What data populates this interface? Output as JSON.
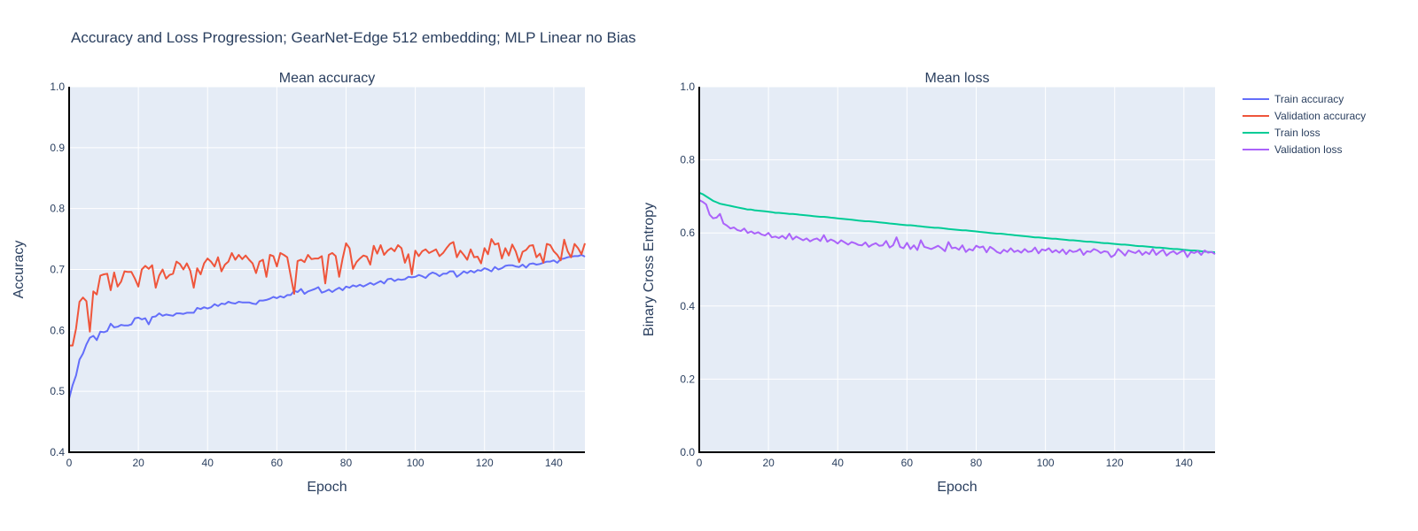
{
  "title": "Accuracy and Loss Progression; GearNet-Edge 512 embedding; MLP Linear no Bias",
  "legend": {
    "placement": "right",
    "entries": [
      {
        "name": "Train accuracy",
        "color": "#636efa"
      },
      {
        "name": "Validation accuracy",
        "color": "#ef553b"
      },
      {
        "name": "Train loss",
        "color": "#00cc96"
      },
      {
        "name": "Validation loss",
        "color": "#ab63fa"
      }
    ]
  },
  "colors": {
    "plot_bg": "#e5ecf6",
    "grid": "#ffffff",
    "axis_line": "#000000",
    "text": "#2a3f5f"
  },
  "chart_data": [
    {
      "type": "line",
      "subplot_title": "Mean accuracy",
      "xlabel": "Epoch",
      "ylabel": "Accuracy",
      "xlim": [
        0,
        149
      ],
      "ylim": [
        0.4,
        1.0
      ],
      "xticks": [
        0,
        20,
        40,
        60,
        80,
        100,
        120,
        140
      ],
      "yticks": [
        0.4,
        0.5,
        0.6,
        0.7,
        0.8,
        0.9,
        1.0
      ],
      "tick_format": "1",
      "grid": true,
      "series": [
        {
          "name": "Train accuracy",
          "color": "#636efa",
          "values": [
            0.488,
            0.51,
            0.526,
            0.552,
            0.562,
            0.577,
            0.588,
            0.591,
            0.584,
            0.598,
            0.597,
            0.599,
            0.611,
            0.605,
            0.606,
            0.609,
            0.608,
            0.608,
            0.61,
            0.62,
            0.621,
            0.618,
            0.62,
            0.61,
            0.622,
            0.623,
            0.628,
            0.624,
            0.626,
            0.625,
            0.624,
            0.628,
            0.628,
            0.627,
            0.629,
            0.629,
            0.629,
            0.637,
            0.635,
            0.638,
            0.636,
            0.638,
            0.643,
            0.64,
            0.644,
            0.643,
            0.647,
            0.645,
            0.644,
            0.647,
            0.646,
            0.646,
            0.646,
            0.644,
            0.643,
            0.649,
            0.649,
            0.65,
            0.652,
            0.655,
            0.653,
            0.656,
            0.654,
            0.658,
            0.658,
            0.665,
            0.663,
            0.668,
            0.66,
            0.664,
            0.666,
            0.668,
            0.671,
            0.662,
            0.664,
            0.667,
            0.663,
            0.667,
            0.67,
            0.666,
            0.672,
            0.67,
            0.674,
            0.672,
            0.675,
            0.672,
            0.675,
            0.678,
            0.675,
            0.678,
            0.681,
            0.677,
            0.684,
            0.685,
            0.681,
            0.684,
            0.683,
            0.684,
            0.688,
            0.687,
            0.688,
            0.691,
            0.689,
            0.686,
            0.692,
            0.695,
            0.693,
            0.689,
            0.693,
            0.693,
            0.697,
            0.697,
            0.688,
            0.692,
            0.697,
            0.694,
            0.698,
            0.695,
            0.699,
            0.698,
            0.702,
            0.7,
            0.697,
            0.704,
            0.7,
            0.702,
            0.706,
            0.707,
            0.707,
            0.705,
            0.704,
            0.708,
            0.703,
            0.709,
            0.71,
            0.708,
            0.709,
            0.711,
            0.713,
            0.713,
            0.715,
            0.711,
            0.717,
            0.718,
            0.72,
            0.721,
            0.722,
            0.722,
            0.724,
            0.721
          ]
        },
        {
          "name": "Validation accuracy",
          "color": "#ef553b",
          "values": [
            0.575,
            0.575,
            0.603,
            0.647,
            0.654,
            0.648,
            0.598,
            0.664,
            0.659,
            0.69,
            0.692,
            0.693,
            0.666,
            0.695,
            0.672,
            0.68,
            0.697,
            0.696,
            0.696,
            0.685,
            0.672,
            0.7,
            0.706,
            0.701,
            0.707,
            0.67,
            0.69,
            0.7,
            0.685,
            0.691,
            0.693,
            0.713,
            0.709,
            0.7,
            0.71,
            0.698,
            0.67,
            0.702,
            0.692,
            0.71,
            0.718,
            0.713,
            0.705,
            0.72,
            0.697,
            0.708,
            0.713,
            0.727,
            0.716,
            0.724,
            0.717,
            0.723,
            0.716,
            0.71,
            0.694,
            0.713,
            0.716,
            0.688,
            0.724,
            0.722,
            0.705,
            0.727,
            0.724,
            0.72,
            0.69,
            0.66,
            0.714,
            0.716,
            0.712,
            0.724,
            0.717,
            0.718,
            0.718,
            0.722,
            0.677,
            0.724,
            0.727,
            0.722,
            0.688,
            0.718,
            0.743,
            0.735,
            0.701,
            0.712,
            0.718,
            0.723,
            0.721,
            0.708,
            0.739,
            0.726,
            0.74,
            0.724,
            0.731,
            0.735,
            0.73,
            0.74,
            0.735,
            0.711,
            0.725,
            0.692,
            0.731,
            0.722,
            0.73,
            0.733,
            0.727,
            0.73,
            0.733,
            0.722,
            0.727,
            0.735,
            0.742,
            0.745,
            0.72,
            0.731,
            0.724,
            0.716,
            0.733,
            0.72,
            0.721,
            0.71,
            0.735,
            0.725,
            0.75,
            0.741,
            0.743,
            0.718,
            0.735,
            0.723,
            0.741,
            0.73,
            0.712,
            0.729,
            0.732,
            0.739,
            0.74,
            0.72,
            0.726,
            0.711,
            0.742,
            0.74,
            0.73,
            0.724,
            0.715,
            0.749,
            0.73,
            0.72,
            0.742,
            0.735,
            0.725,
            0.743
          ]
        }
      ]
    },
    {
      "type": "line",
      "subplot_title": "Mean loss",
      "xlabel": "Epoch",
      "ylabel": "Binary Cross Entropy",
      "xlim": [
        0,
        149
      ],
      "ylim": [
        0,
        1.0
      ],
      "xticks": [
        0,
        20,
        40,
        60,
        80,
        100,
        120,
        140
      ],
      "yticks": [
        0,
        0.2,
        0.4,
        0.6,
        0.8,
        1.0
      ],
      "tick_format": "1",
      "grid": true,
      "series": [
        {
          "name": "Train loss",
          "color": "#00cc96",
          "values": [
            0.71,
            0.706,
            0.7,
            0.694,
            0.688,
            0.684,
            0.68,
            0.678,
            0.676,
            0.674,
            0.672,
            0.67,
            0.668,
            0.666,
            0.664,
            0.664,
            0.662,
            0.661,
            0.66,
            0.659,
            0.658,
            0.657,
            0.655,
            0.655,
            0.654,
            0.653,
            0.652,
            0.652,
            0.651,
            0.65,
            0.649,
            0.648,
            0.647,
            0.646,
            0.645,
            0.644,
            0.644,
            0.643,
            0.642,
            0.641,
            0.64,
            0.639,
            0.638,
            0.637,
            0.636,
            0.635,
            0.634,
            0.633,
            0.632,
            0.632,
            0.631,
            0.63,
            0.629,
            0.628,
            0.627,
            0.626,
            0.625,
            0.624,
            0.623,
            0.622,
            0.621,
            0.621,
            0.62,
            0.619,
            0.618,
            0.617,
            0.616,
            0.615,
            0.614,
            0.614,
            0.613,
            0.612,
            0.611,
            0.61,
            0.609,
            0.608,
            0.607,
            0.607,
            0.606,
            0.605,
            0.604,
            0.603,
            0.602,
            0.601,
            0.6,
            0.599,
            0.598,
            0.598,
            0.597,
            0.596,
            0.595,
            0.594,
            0.593,
            0.592,
            0.591,
            0.59,
            0.589,
            0.588,
            0.588,
            0.587,
            0.586,
            0.585,
            0.584,
            0.584,
            0.583,
            0.582,
            0.581,
            0.58,
            0.58,
            0.579,
            0.578,
            0.577,
            0.576,
            0.576,
            0.575,
            0.574,
            0.573,
            0.572,
            0.572,
            0.571,
            0.57,
            0.569,
            0.568,
            0.568,
            0.567,
            0.566,
            0.565,
            0.564,
            0.564,
            0.563,
            0.562,
            0.561,
            0.56,
            0.56,
            0.559,
            0.558,
            0.557,
            0.556,
            0.556,
            0.555,
            0.554,
            0.553,
            0.552,
            0.552,
            0.551,
            0.55,
            0.549,
            0.548,
            0.548,
            0.547
          ]
        },
        {
          "name": "Validation loss",
          "color": "#ab63fa",
          "values": [
            0.69,
            0.685,
            0.678,
            0.65,
            0.64,
            0.642,
            0.652,
            0.626,
            0.62,
            0.612,
            0.615,
            0.608,
            0.605,
            0.612,
            0.6,
            0.604,
            0.598,
            0.602,
            0.596,
            0.593,
            0.6,
            0.588,
            0.59,
            0.586,
            0.592,
            0.584,
            0.598,
            0.582,
            0.59,
            0.585,
            0.58,
            0.585,
            0.577,
            0.582,
            0.585,
            0.578,
            0.594,
            0.576,
            0.582,
            0.578,
            0.571,
            0.58,
            0.574,
            0.568,
            0.575,
            0.572,
            0.567,
            0.566,
            0.574,
            0.562,
            0.568,
            0.572,
            0.565,
            0.566,
            0.578,
            0.56,
            0.566,
            0.588,
            0.562,
            0.558,
            0.573,
            0.556,
            0.566,
            0.553,
            0.58,
            0.562,
            0.559,
            0.556,
            0.56,
            0.565,
            0.558,
            0.55,
            0.575,
            0.558,
            0.56,
            0.554,
            0.566,
            0.548,
            0.556,
            0.552,
            0.565,
            0.56,
            0.563,
            0.547,
            0.562,
            0.556,
            0.548,
            0.544,
            0.554,
            0.548,
            0.558,
            0.548,
            0.552,
            0.546,
            0.556,
            0.548,
            0.55,
            0.56,
            0.544,
            0.555,
            0.552,
            0.558,
            0.547,
            0.553,
            0.546,
            0.555,
            0.542,
            0.553,
            0.548,
            0.55,
            0.556,
            0.54,
            0.55,
            0.548,
            0.556,
            0.552,
            0.545,
            0.55,
            0.548,
            0.534,
            0.54,
            0.556,
            0.548,
            0.538,
            0.552,
            0.548,
            0.545,
            0.552,
            0.54,
            0.548,
            0.542,
            0.556,
            0.54,
            0.548,
            0.554,
            0.538,
            0.546,
            0.55,
            0.542,
            0.548,
            0.552,
            0.534,
            0.548,
            0.545,
            0.55,
            0.54,
            0.552,
            0.546,
            0.548,
            0.542
          ]
        }
      ]
    }
  ]
}
